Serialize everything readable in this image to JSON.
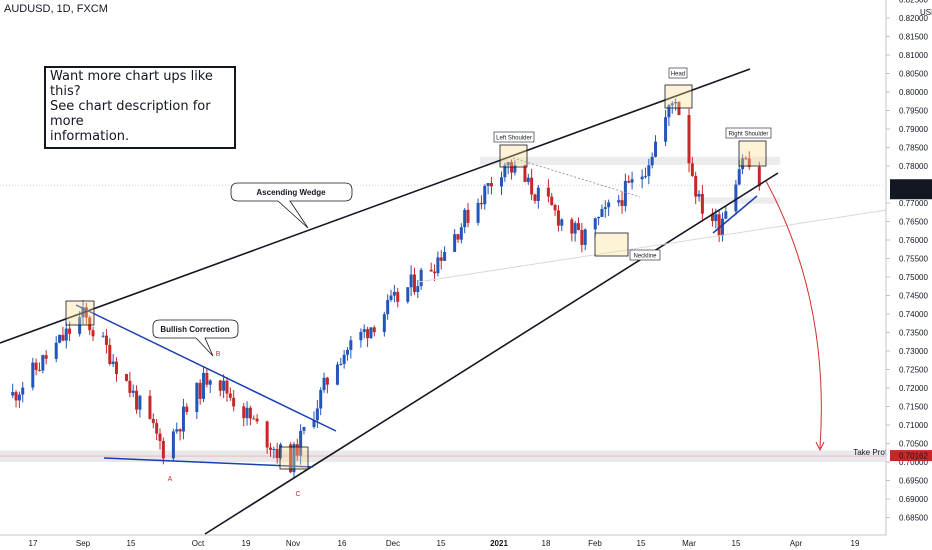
{
  "header": {
    "title": "AUDUSD, 1D, FXCM"
  },
  "callout": {
    "lines": [
      "Want more chart ups like this?",
      "See chart description for more",
      "information."
    ]
  },
  "price_axis": {
    "unit": "USD",
    "ticks": [
      "0.82500",
      "0.82000",
      "0.81500",
      "0.81000",
      "0.80500",
      "0.80000",
      "0.79500",
      "0.79000",
      "0.78500",
      "0.78000",
      "0.77000",
      "0.76500",
      "0.76000",
      "0.75500",
      "0.75000",
      "0.74500",
      "0.74000",
      "0.73500",
      "0.73000",
      "0.72500",
      "0.72000",
      "0.71500",
      "0.71000",
      "0.70500",
      "0.70000",
      "0.69500",
      "0.69000",
      "0.68500"
    ],
    "current_price": "0.77478",
    "countdown": "05:15:13",
    "target_price": "0.70162"
  },
  "time_axis": {
    "labels": [
      "17",
      "Sep",
      "15",
      "Oct",
      "19",
      "Nov",
      "16",
      "Dec",
      "15",
      "2021",
      "18",
      "Feb",
      "15",
      "Mar",
      "15",
      "Apr",
      "19"
    ]
  },
  "annotations": {
    "ascending_wedge": "Ascending Wedge",
    "bullish_correction": "Bullish Correction",
    "left_shoulder": "Left Shoulder",
    "head": "Head",
    "right_shoulder": "Right Shoulder",
    "neckline": "Neckline",
    "take_profit": "Take Profit",
    "point_a": "A",
    "point_b": "B",
    "point_c": "C"
  },
  "colors": {
    "bull": "#2356b8",
    "bear": "#c62828",
    "price_tag": "#131722",
    "target_tag": "#c62828",
    "channel": "#1a3fb0"
  },
  "chart_data": {
    "type": "candlestick",
    "symbol": "AUDUSD",
    "timeframe": "1D",
    "y_range": [
      0.6825,
      0.8275
    ],
    "x_range": [
      "2020-08-11",
      "2021-04-28"
    ],
    "ohlc_anchors": [
      {
        "date": "2020-08-11",
        "close": 0.718
      },
      {
        "date": "2020-09-01",
        "close": 0.7395
      },
      {
        "date": "2020-09-10",
        "close": 0.728
      },
      {
        "date": "2020-09-25",
        "close": 0.7035
      },
      {
        "date": "2020-10-09",
        "close": 0.7245
      },
      {
        "date": "2020-10-29",
        "close": 0.703
      },
      {
        "date": "2020-11-02",
        "close": 0.7
      },
      {
        "date": "2020-11-16",
        "close": 0.728
      },
      {
        "date": "2020-12-15",
        "close": 0.754
      },
      {
        "date": "2021-01-05",
        "close": 0.781
      },
      {
        "date": "2021-01-28",
        "close": 0.76
      },
      {
        "date": "2021-02-15",
        "close": 0.778
      },
      {
        "date": "2021-02-25",
        "close": 0.799
      },
      {
        "date": "2021-03-04",
        "close": 0.77
      },
      {
        "date": "2021-03-10",
        "close": 0.764
      },
      {
        "date": "2021-03-17",
        "close": 0.783
      },
      {
        "date": "2021-03-22",
        "close": 0.7748
      }
    ]
  }
}
